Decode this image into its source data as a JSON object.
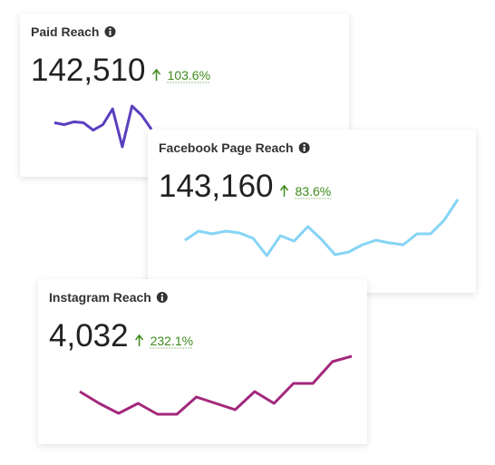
{
  "cards": [
    {
      "title": "Paid Reach",
      "value": "142,510",
      "change": "103.6%",
      "color": "#5a3fbf",
      "sparkline": [
        65,
        63,
        66,
        65,
        57,
        63,
        80,
        39,
        83,
        73,
        58
      ]
    },
    {
      "title": "Facebook Page Reach",
      "value": "143,160",
      "change": "83.6%",
      "color": "#85d4f5",
      "sparkline": [
        65,
        75,
        72,
        75,
        73,
        67,
        48,
        70,
        64,
        80,
        66,
        49,
        52,
        60,
        65,
        62,
        60,
        72,
        72,
        87,
        110
      ]
    },
    {
      "title": "Instagram Reach",
      "value": "4,032",
      "change": "232.1%",
      "color": "#a3287c",
      "sparkline": [
        68,
        55,
        44,
        55,
        43,
        43,
        62,
        55,
        48,
        68,
        55,
        77,
        77,
        101,
        107
      ]
    }
  ]
}
